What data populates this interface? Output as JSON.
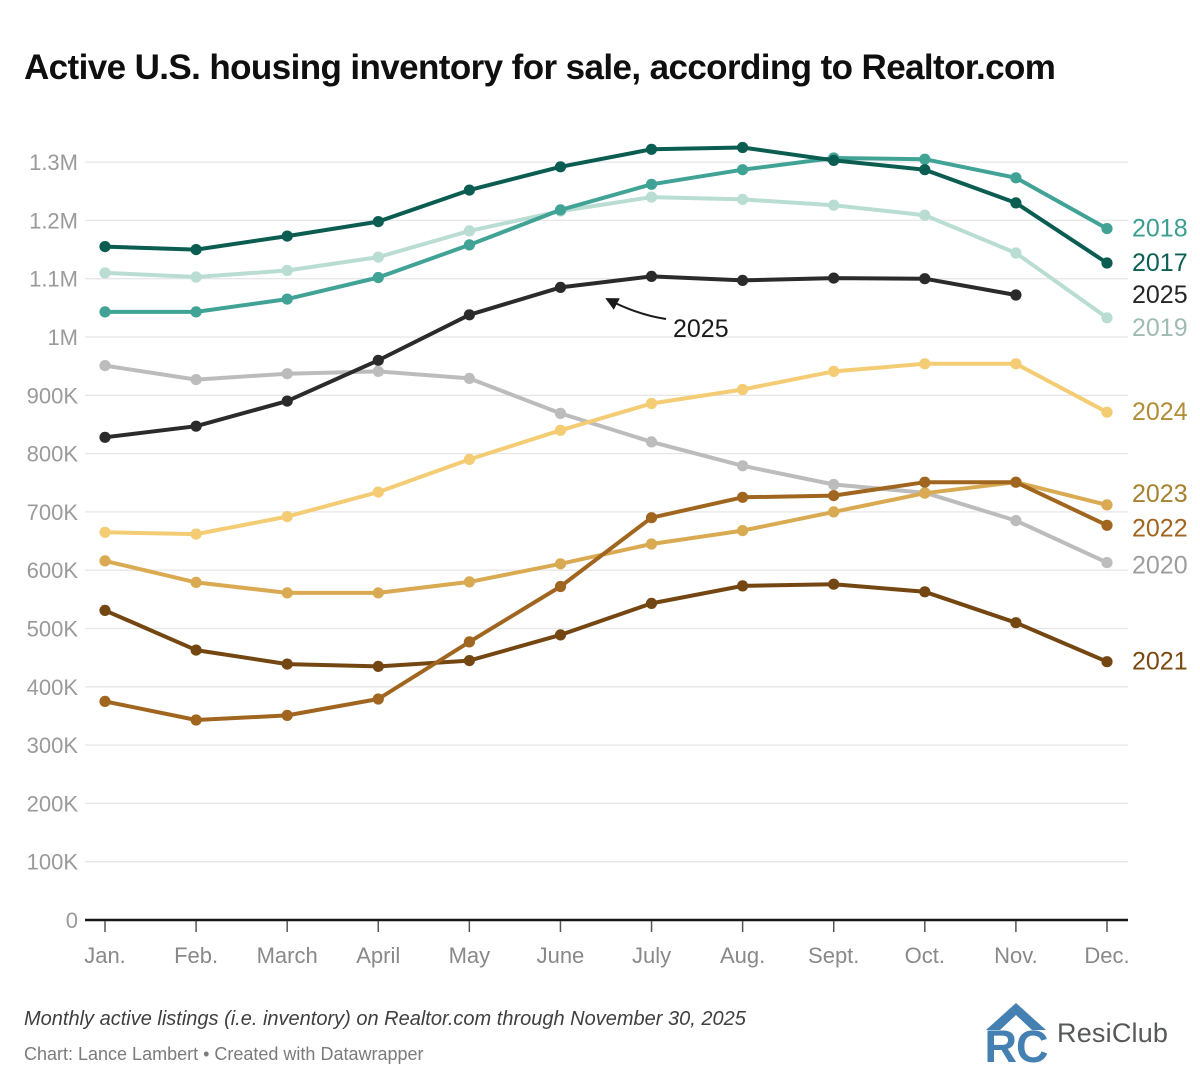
{
  "title": "Active U.S. housing inventory for sale, according to Realtor.com",
  "chart_data": {
    "type": "line",
    "title": "Active U.S. housing inventory for sale, according to Realtor.com",
    "x_tick_labels": [
      "Jan.",
      "Feb.",
      "March",
      "April",
      "May",
      "June",
      "July",
      "Aug.",
      "Sept.",
      "Oct.",
      "Nov.",
      "Dec."
    ],
    "y_tick_labels": [
      "0",
      "100K",
      "200K",
      "300K",
      "400K",
      "500K",
      "600K",
      "700K",
      "800K",
      "900K",
      "1M",
      "1.1M",
      "1.2M",
      "1.3M"
    ],
    "ylim": [
      0,
      1300000
    ],
    "grid": "horizontal",
    "legend_position": "right-edge-labels",
    "draw_order": [
      "2019",
      "2018",
      "2017",
      "2020",
      "2024",
      "2023",
      "2021",
      "2022",
      "2025"
    ],
    "series": [
      {
        "name": "2017",
        "color": "#0b5d52",
        "label_color": "#0b5f53",
        "label_dy": 0,
        "values": [
          1155000,
          1150000,
          1173000,
          1198000,
          1252000,
          1292000,
          1322000,
          1325000,
          1303000,
          1287000,
          1230000,
          1127000
        ]
      },
      {
        "name": "2018",
        "color": "#41a396",
        "label_color": "#3b9e90",
        "label_dy": 0,
        "values": [
          1043000,
          1043000,
          1065000,
          1102000,
          1158000,
          1218000,
          1262000,
          1287000,
          1307000,
          1305000,
          1273000,
          1186000
        ]
      },
      {
        "name": "2019",
        "color": "#b9ddd3",
        "label_color": "#9fbcb4",
        "label_dy": 10,
        "values": [
          1110000,
          1103000,
          1114000,
          1137000,
          1182000,
          1216000,
          1240000,
          1236000,
          1226000,
          1209000,
          1144000,
          1033000
        ]
      },
      {
        "name": "2020",
        "color": "#bcbcbc",
        "label_color": "#9d9d9d",
        "label_dy": 3,
        "values": [
          951000,
          927000,
          937000,
          941000,
          929000,
          869000,
          820000,
          779000,
          747000,
          733000,
          685000,
          613000
        ]
      },
      {
        "name": "2021",
        "color": "#744712",
        "label_color": "#7b4a10",
        "label_dy": 0,
        "values": [
          531000,
          463000,
          439000,
          435000,
          445000,
          489000,
          543000,
          573000,
          576000,
          563000,
          510000,
          443000
        ]
      },
      {
        "name": "2022",
        "color": "#a0661f",
        "label_color": "#a2641f",
        "label_dy": 3,
        "values": [
          375000,
          343000,
          351000,
          379000,
          477000,
          572000,
          690000,
          725000,
          728000,
          751000,
          751000,
          677000
        ]
      },
      {
        "name": "2023",
        "color": "#d9aa52",
        "label_color": "#a5822f",
        "label_dy": -11,
        "values": [
          616000,
          579000,
          561000,
          561000,
          580000,
          611000,
          645000,
          668000,
          700000,
          732000,
          751000,
          712000
        ]
      },
      {
        "name": "2024",
        "color": "#f4cc74",
        "label_color": "#b18d35",
        "label_dy": 0,
        "values": [
          665000,
          662000,
          692000,
          734000,
          790000,
          840000,
          886000,
          910000,
          941000,
          954000,
          954000,
          871000
        ]
      },
      {
        "name": "2025",
        "color": "#2b2b2b",
        "label_color": "#262626",
        "label_dy": 0,
        "values": [
          828000,
          847000,
          890000,
          960000,
          1038000,
          1085000,
          1104000,
          1097000,
          1101000,
          1100000,
          1072000,
          null
        ]
      }
    ],
    "annotation": {
      "text": "2025"
    }
  },
  "footer": {
    "note": "Monthly active listings (i.e. inventory) on Realtor.com through November 30, 2025",
    "byline": "Chart: Lance Lambert • Created with Datawrapper"
  },
  "logo": {
    "text": "ResiClub",
    "mark_letters": "RC",
    "mark_color": "#4480b1"
  }
}
